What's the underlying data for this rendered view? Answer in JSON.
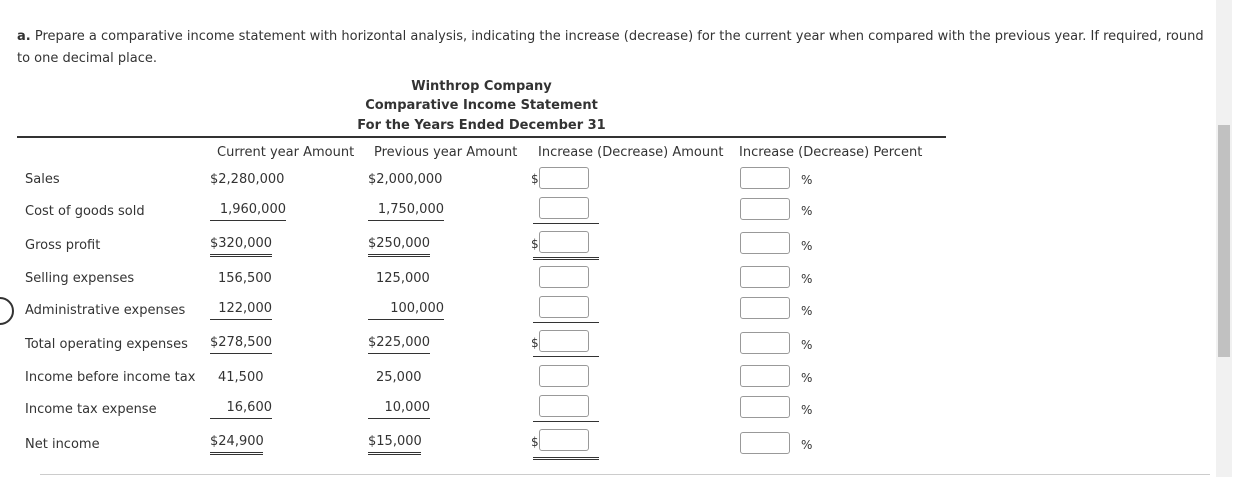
{
  "instructions": {
    "part": "a.",
    "text": "Prepare a comparative income statement with horizontal analysis, indicating the increase (decrease) for the current year when compared with the previous year. If required, round to one decimal place."
  },
  "statement": {
    "company": "Winthrop Company",
    "title": "Comparative Income Statement",
    "period": "For the Years Ended December 31"
  },
  "columns": {
    "current": "Current year Amount",
    "previous": "Previous year Amount",
    "inc_amount": "Increase (Decrease) Amount",
    "inc_percent": "Increase (Decrease) Percent"
  },
  "symbols": {
    "dollar": "$",
    "percent": "%"
  },
  "rows": [
    {
      "label": "Sales",
      "current": "$2,280,000",
      "previous": "$2,000,000",
      "amount_value": "",
      "percent_value": ""
    },
    {
      "label": "Cost of goods sold",
      "current": "1,960,000",
      "previous": "1,750,000",
      "amount_value": "",
      "percent_value": ""
    },
    {
      "label": "Gross profit",
      "current": "$320,000",
      "previous": "$250,000",
      "amount_value": "",
      "percent_value": ""
    },
    {
      "label": "Selling expenses",
      "current": "156,500",
      "previous": "125,000",
      "amount_value": "",
      "percent_value": ""
    },
    {
      "label": "Administrative expenses",
      "current": "122,000",
      "previous": "100,000",
      "amount_value": "",
      "percent_value": ""
    },
    {
      "label": "Total operating expenses",
      "current": "$278,500",
      "previous": "$225,000",
      "amount_value": "",
      "percent_value": ""
    },
    {
      "label": "Income before income tax",
      "current": "41,500",
      "previous": "25,000",
      "amount_value": "",
      "percent_value": ""
    },
    {
      "label": "Income tax expense",
      "current": "16,600",
      "previous": "10,000",
      "amount_value": "",
      "percent_value": ""
    },
    {
      "label": "Net income",
      "current": "$24,900",
      "previous": "$15,000",
      "amount_value": "",
      "percent_value": ""
    }
  ]
}
